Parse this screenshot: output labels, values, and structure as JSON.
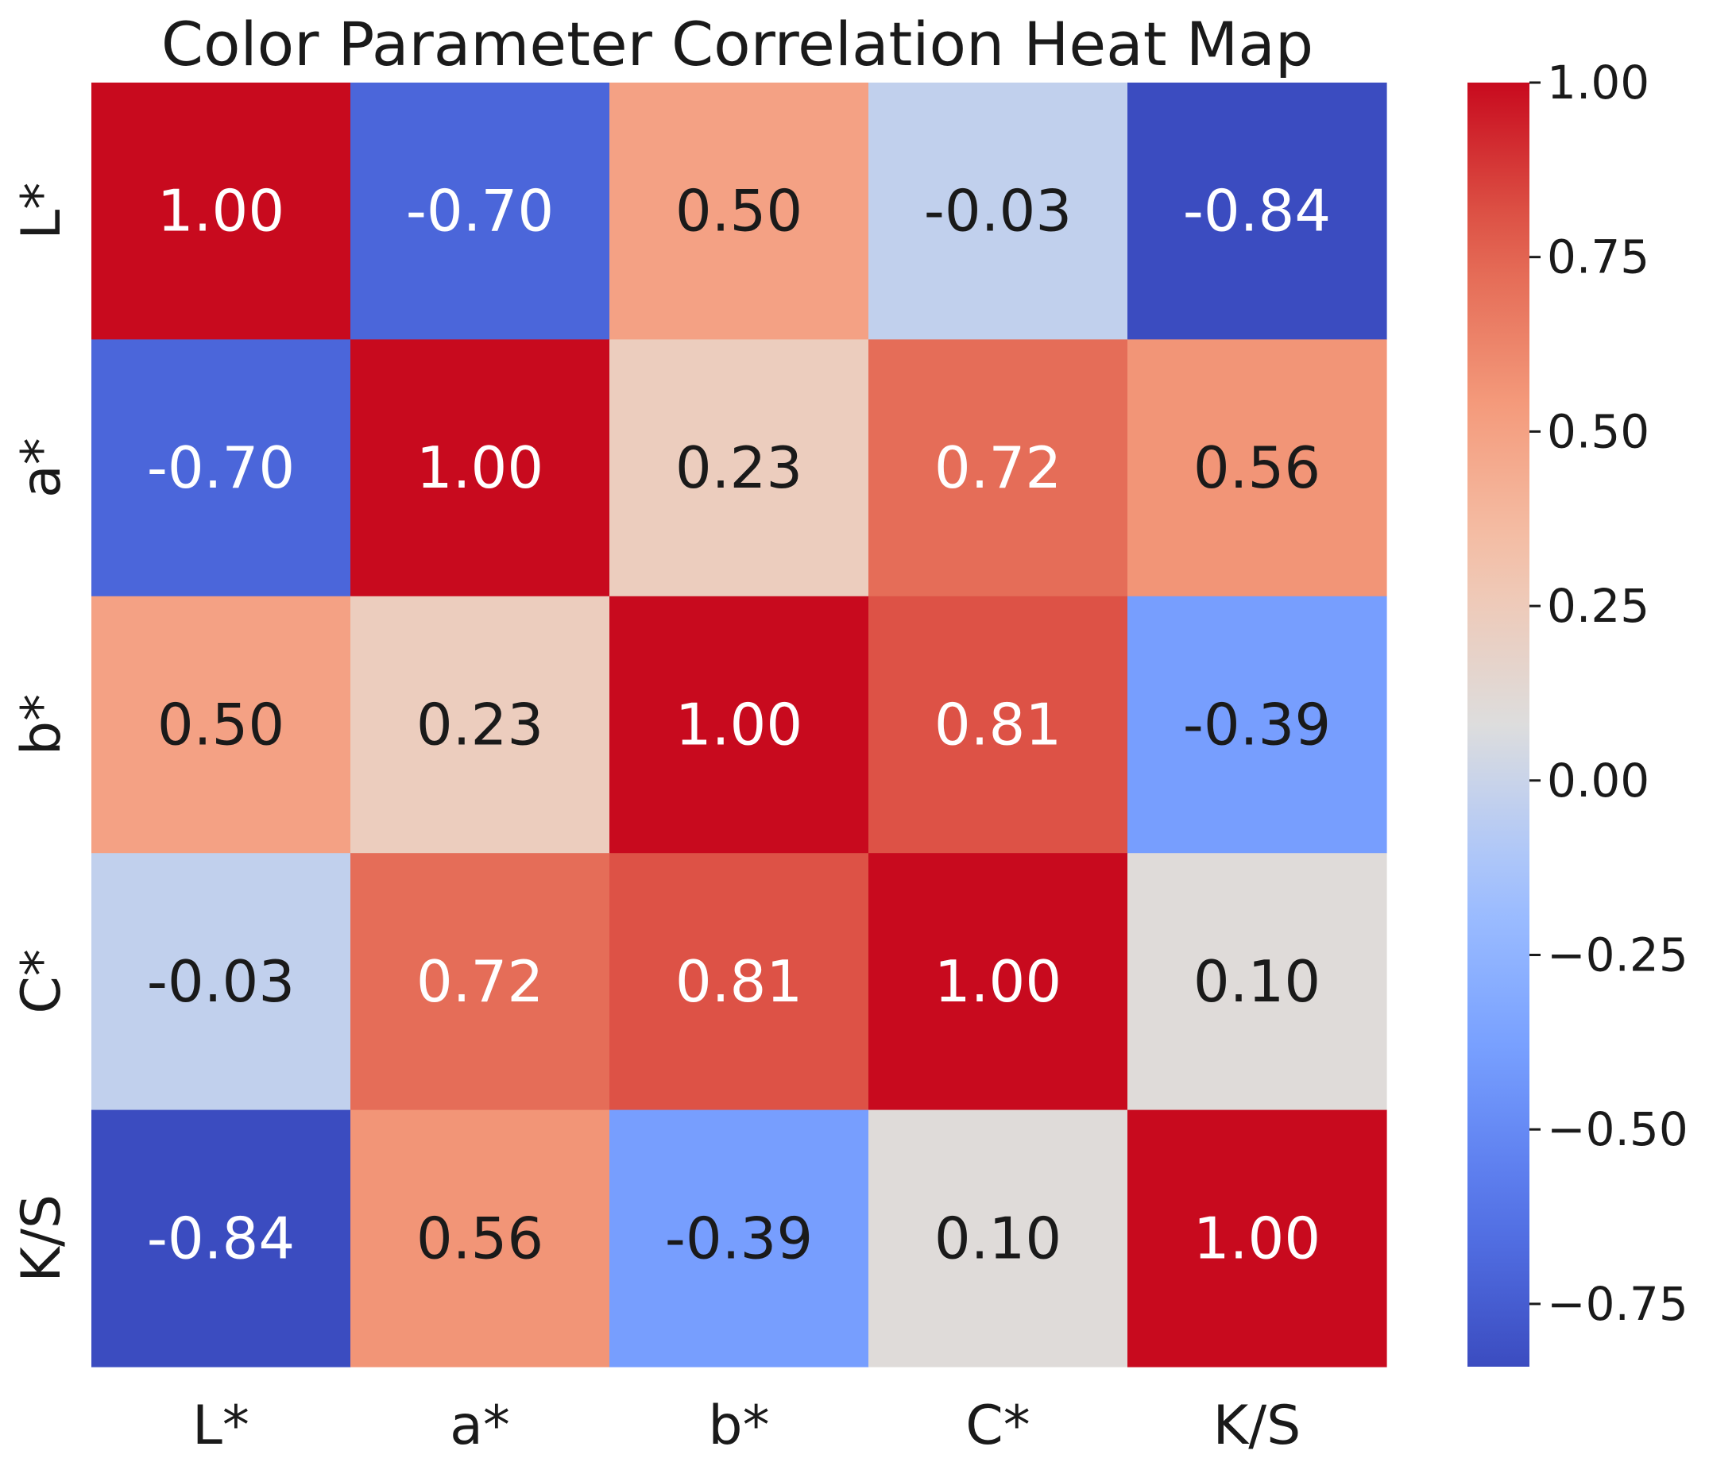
{
  "chart_data": {
    "type": "heatmap",
    "title": "Color Parameter Correlation Heat Map",
    "x_labels": [
      "L*",
      "a*",
      "b*",
      "C*",
      "K/S"
    ],
    "y_labels": [
      "L*",
      "a*",
      "b*",
      "C*",
      "K/S"
    ],
    "values": [
      [
        1.0,
        -0.7,
        0.5,
        -0.03,
        -0.84
      ],
      [
        -0.7,
        1.0,
        0.23,
        0.72,
        0.56
      ],
      [
        0.5,
        0.23,
        1.0,
        0.81,
        -0.39
      ],
      [
        -0.03,
        0.72,
        0.81,
        1.0,
        0.1
      ],
      [
        -0.84,
        0.56,
        -0.39,
        0.1,
        1.0
      ]
    ],
    "value_labels": [
      [
        "1.00",
        "-0.70",
        "0.50",
        "-0.03",
        "-0.84"
      ],
      [
        "-0.70",
        "1.00",
        "0.23",
        "0.72",
        "0.56"
      ],
      [
        "0.50",
        "0.23",
        "1.00",
        "0.81",
        "-0.39"
      ],
      [
        "-0.03",
        "0.72",
        "0.81",
        "1.00",
        "0.10"
      ],
      [
        "-0.84",
        "0.56",
        "-0.39",
        "0.10",
        "1.00"
      ]
    ],
    "colormap": "coolwarm",
    "vmin": -0.84,
    "vmax": 1.0,
    "colorbar_ticks": [
      1.0,
      0.75,
      0.5,
      0.25,
      0.0,
      -0.25,
      -0.5,
      -0.75
    ],
    "colorbar_tick_labels": [
      "1.00",
      "0.75",
      "0.50",
      "0.25",
      "0.00",
      "−0.25",
      "−0.50",
      "−0.75"
    ]
  },
  "colors": {
    "dark_text": "#1a1a1a",
    "light_text": "#ffffff"
  }
}
